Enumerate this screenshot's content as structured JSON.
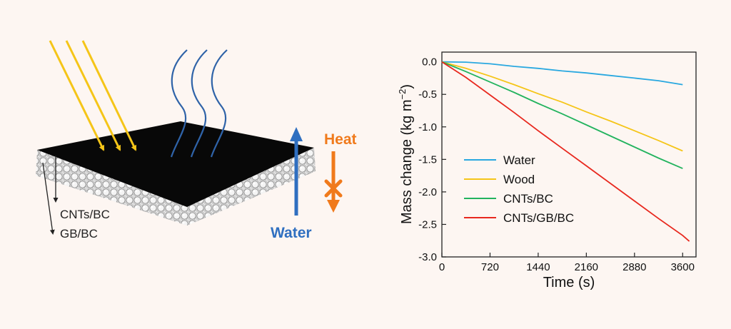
{
  "schematic": {
    "layer_labels": [
      "CNTs/BC",
      "GB/BC"
    ],
    "heat_label": "Heat",
    "water_label": "Water",
    "colors": {
      "sunlight": "#f5c518",
      "vapor": "#2f63a8",
      "water_arrow": "#2f6fc0",
      "heat_arrow": "#f07a1c"
    }
  },
  "chart_data": {
    "type": "line",
    "xlabel": "Time (s)",
    "ylabel_main": "Mass change (kg m",
    "ylabel_sup": "−2",
    "ylabel_close": ")",
    "xlim": [
      0,
      3800
    ],
    "ylim": [
      -3.0,
      0.15
    ],
    "xticks": [
      0,
      720,
      1440,
      2160,
      2880,
      3600
    ],
    "xtick_labels": [
      "0",
      "720",
      "1440",
      "2160",
      "2880",
      "3600"
    ],
    "yticks": [
      0.0,
      -0.5,
      -1.0,
      -1.5,
      -2.0,
      -2.5,
      -3.0
    ],
    "ytick_labels": [
      "0.0",
      "-0.5",
      "-1.0",
      "-1.5",
      "-2.0",
      "-2.5",
      "-3.0"
    ],
    "grid": false,
    "legend_position": "center-left",
    "series": [
      {
        "name": "Water",
        "color": "#29a8e0",
        "x": [
          0,
          360,
          720,
          1080,
          1440,
          1800,
          2160,
          2520,
          2880,
          3240,
          3600
        ],
        "y": [
          0.0,
          -0.005,
          -0.03,
          -0.07,
          -0.1,
          -0.14,
          -0.17,
          -0.21,
          -0.25,
          -0.29,
          -0.35
        ]
      },
      {
        "name": "Wood",
        "color": "#f5c518",
        "x": [
          0,
          360,
          720,
          1080,
          1440,
          1800,
          2160,
          2520,
          2880,
          3240,
          3600
        ],
        "y": [
          0.0,
          -0.1,
          -0.22,
          -0.35,
          -0.49,
          -0.62,
          -0.77,
          -0.91,
          -1.06,
          -1.21,
          -1.37
        ]
      },
      {
        "name": "CNTs/BC",
        "color": "#22b35e",
        "x": [
          0,
          360,
          720,
          1080,
          1440,
          1800,
          2160,
          2520,
          2880,
          3240,
          3600
        ],
        "y": [
          0.0,
          -0.15,
          -0.31,
          -0.47,
          -0.64,
          -0.8,
          -0.97,
          -1.14,
          -1.31,
          -1.48,
          -1.64
        ]
      },
      {
        "name": "CNTs/GB/BC",
        "color": "#e8281e",
        "x": [
          0,
          360,
          720,
          1080,
          1440,
          1800,
          2160,
          2520,
          2880,
          3240,
          3600,
          3700
        ],
        "y": [
          0.0,
          -0.24,
          -0.51,
          -0.78,
          -1.06,
          -1.33,
          -1.6,
          -1.87,
          -2.14,
          -2.41,
          -2.67,
          -2.76
        ]
      }
    ]
  }
}
